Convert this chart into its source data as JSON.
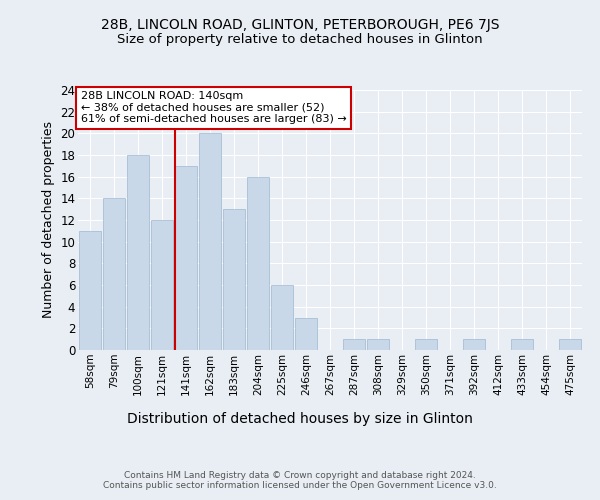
{
  "title_line1": "28B, LINCOLN ROAD, GLINTON, PETERBOROUGH, PE6 7JS",
  "title_line2": "Size of property relative to detached houses in Glinton",
  "xlabel": "Distribution of detached houses by size in Glinton",
  "ylabel": "Number of detached properties",
  "footnote": "Contains HM Land Registry data © Crown copyright and database right 2024.\nContains public sector information licensed under the Open Government Licence v3.0.",
  "bin_labels": [
    "58sqm",
    "79sqm",
    "100sqm",
    "121sqm",
    "141sqm",
    "162sqm",
    "183sqm",
    "204sqm",
    "225sqm",
    "246sqm",
    "267sqm",
    "287sqm",
    "308sqm",
    "329sqm",
    "350sqm",
    "371sqm",
    "392sqm",
    "412sqm",
    "433sqm",
    "454sqm",
    "475sqm"
  ],
  "bar_values": [
    11,
    14,
    18,
    12,
    17,
    20,
    13,
    16,
    6,
    3,
    0,
    1,
    1,
    0,
    1,
    0,
    1,
    0,
    1,
    0,
    1
  ],
  "bar_color": "#c8d8e8",
  "bar_edge_color": "#a0b8d0",
  "vline_x_index": 4,
  "vline_color": "#cc0000",
  "annotation_text": "28B LINCOLN ROAD: 140sqm\n← 38% of detached houses are smaller (52)\n61% of semi-detached houses are larger (83) →",
  "annotation_box_color": "#ffffff",
  "annotation_box_edge_color": "#cc0000",
  "ylim": [
    0,
    24
  ],
  "yticks": [
    0,
    2,
    4,
    6,
    8,
    10,
    12,
    14,
    16,
    18,
    20,
    22,
    24
  ],
  "background_color": "#e8eef4",
  "plot_bg_color": "#e8eef4",
  "grid_color": "#ffffff",
  "title1_fontsize": 10,
  "title2_fontsize": 9.5,
  "xlabel_fontsize": 10,
  "ylabel_fontsize": 9,
  "annotation_fontsize": 8,
  "tick_fontsize": 7.5,
  "ytick_fontsize": 8.5,
  "footnote_fontsize": 6.5
}
